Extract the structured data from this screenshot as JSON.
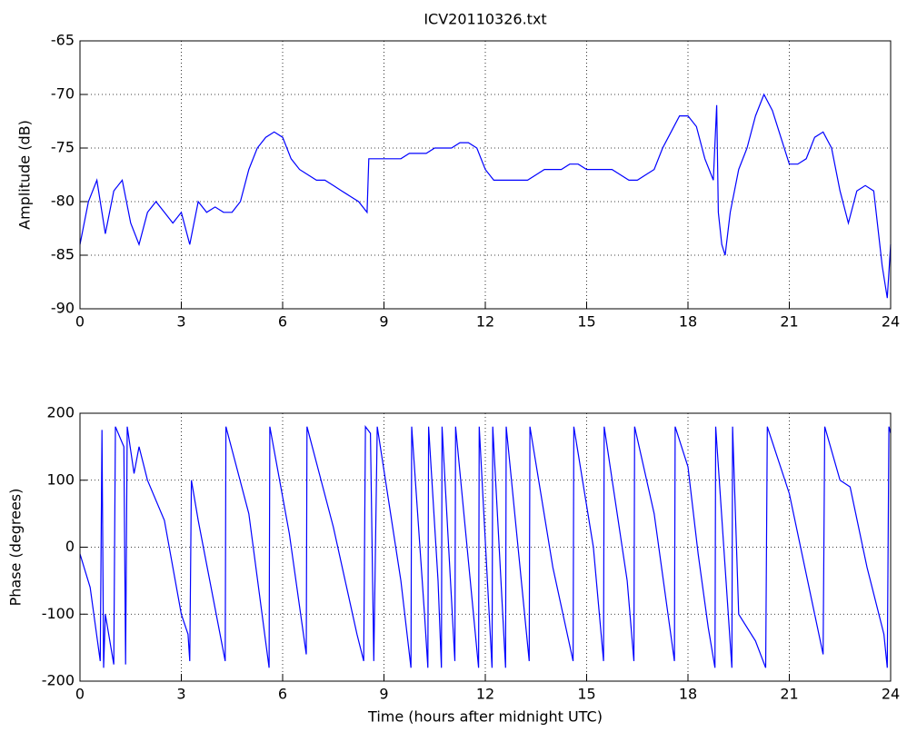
{
  "chart_data": [
    {
      "type": "line",
      "title": "ICV20110326.txt",
      "ylabel": "Amplitude (dB)",
      "xlim": [
        0,
        24
      ],
      "xticks": [
        0,
        3,
        6,
        9,
        12,
        15,
        18,
        21,
        24
      ],
      "ylim": [
        -90,
        -65
      ],
      "yticks": [
        -90,
        -85,
        -80,
        -75,
        -70,
        -65
      ],
      "grid": true,
      "series": [
        {
          "name": "Amplitude",
          "color": "#0000ff",
          "x": [
            0,
            0.25,
            0.5,
            0.75,
            1,
            1.25,
            1.5,
            1.75,
            2,
            2.25,
            2.5,
            2.75,
            3,
            3.25,
            3.5,
            3.75,
            4,
            4.25,
            4.5,
            4.75,
            5,
            5.25,
            5.5,
            5.75,
            6,
            6.25,
            6.5,
            6.75,
            7,
            7.25,
            7.5,
            7.75,
            8,
            8.25,
            8.5,
            8.55,
            8.75,
            9,
            9.25,
            9.5,
            9.75,
            10,
            10.25,
            10.5,
            10.75,
            11,
            11.25,
            11.5,
            11.75,
            12,
            12.25,
            12.5,
            12.75,
            13,
            13.25,
            13.5,
            13.75,
            14,
            14.25,
            14.5,
            14.75,
            15,
            15.25,
            15.5,
            15.75,
            16,
            16.25,
            16.5,
            16.75,
            17,
            17.25,
            17.5,
            17.75,
            18,
            18.25,
            18.5,
            18.75,
            18.85,
            18.9,
            19,
            19.1,
            19.25,
            19.5,
            19.75,
            20,
            20.25,
            20.5,
            20.75,
            21,
            21.25,
            21.5,
            21.75,
            22,
            22.25,
            22.5,
            22.75,
            23,
            23.25,
            23.5,
            23.75,
            23.9,
            24
          ],
          "values": [
            -84,
            -80,
            -78,
            -83,
            -79,
            -78,
            -82,
            -84,
            -81,
            -80,
            -81,
            -82,
            -81,
            -84,
            -80,
            -81,
            -80.5,
            -81,
            -81,
            -80,
            -77,
            -75,
            -74,
            -73.5,
            -74,
            -76,
            -77,
            -77.5,
            -78,
            -78,
            -78.5,
            -79,
            -79.5,
            -80,
            -81,
            -76,
            -76,
            -76,
            -76,
            -76,
            -75.5,
            -75.5,
            -75.5,
            -75,
            -75,
            -75,
            -74.5,
            -74.5,
            -75,
            -77,
            -78,
            -78,
            -78,
            -78,
            -78,
            -77.5,
            -77,
            -77,
            -77,
            -76.5,
            -76.5,
            -77,
            -77,
            -77,
            -77,
            -77.5,
            -78,
            -78,
            -77.5,
            -77,
            -75,
            -73.5,
            -72,
            -72,
            -73,
            -76,
            -78,
            -71,
            -81,
            -84,
            -85,
            -81,
            -77,
            -75,
            -72,
            -70,
            -71.5,
            -74,
            -76.5,
            -76.5,
            -76,
            -74,
            -73.5,
            -75,
            -79,
            -82,
            -79,
            -78.5,
            -79,
            -86,
            -89,
            -84
          ]
        }
      ]
    },
    {
      "type": "line",
      "ylabel": "Phase (degrees)",
      "xlabel": "Time (hours after midnight UTC)",
      "xlim": [
        0,
        24
      ],
      "xticks": [
        0,
        3,
        6,
        9,
        12,
        15,
        18,
        21,
        24
      ],
      "ylim": [
        -200,
        200
      ],
      "yticks": [
        -200,
        -100,
        0,
        100,
        200
      ],
      "grid": true,
      "series": [
        {
          "name": "Phase",
          "color": "#0000ff",
          "x": [
            0,
            0.3,
            0.6,
            0.65,
            0.7,
            0.75,
            1,
            1.05,
            1.3,
            1.35,
            1.4,
            1.6,
            1.75,
            2,
            2.5,
            3,
            3.2,
            3.25,
            3.3,
            3.5,
            4.3,
            4.32,
            5,
            5.6,
            5.62,
            6.2,
            6.7,
            6.72,
            7.5,
            8.2,
            8.4,
            8.45,
            8.6,
            8.7,
            8.8,
            9.5,
            9.8,
            9.82,
            10.2,
            10.3,
            10.32,
            10.6,
            10.7,
            10.72,
            11.1,
            11.12,
            11.8,
            11.82,
            12.2,
            12.22,
            12.6,
            12.62,
            13.3,
            13.32,
            14,
            14.6,
            14.62,
            15.2,
            15.5,
            15.52,
            16.2,
            16.4,
            16.42,
            17,
            17.6,
            17.62,
            18,
            18.3,
            18.6,
            18.8,
            18.82,
            19.3,
            19.32,
            19.5,
            20,
            20.3,
            20.35,
            21,
            21.5,
            22,
            22.05,
            22.5,
            22.8,
            23.3,
            23.8,
            23.9,
            23.95,
            24
          ],
          "values": [
            -10,
            -60,
            -170,
            175,
            -180,
            -100,
            -175,
            180,
            150,
            -175,
            180,
            110,
            150,
            100,
            40,
            -100,
            -130,
            -170,
            100,
            40,
            -170,
            180,
            50,
            -180,
            180,
            20,
            -160,
            180,
            30,
            -130,
            -170,
            180,
            170,
            -170,
            180,
            -50,
            -180,
            180,
            -100,
            -180,
            180,
            -50,
            -180,
            180,
            -170,
            180,
            -180,
            180,
            -180,
            180,
            -180,
            180,
            -170,
            180,
            -30,
            -170,
            180,
            0,
            -170,
            180,
            -50,
            -170,
            180,
            50,
            -170,
            180,
            120,
            -10,
            -120,
            -180,
            180,
            -180,
            180,
            -100,
            -140,
            -180,
            180,
            80,
            -40,
            -160,
            180,
            100,
            90,
            -30,
            -130,
            -180,
            180,
            170
          ]
        }
      ]
    }
  ]
}
